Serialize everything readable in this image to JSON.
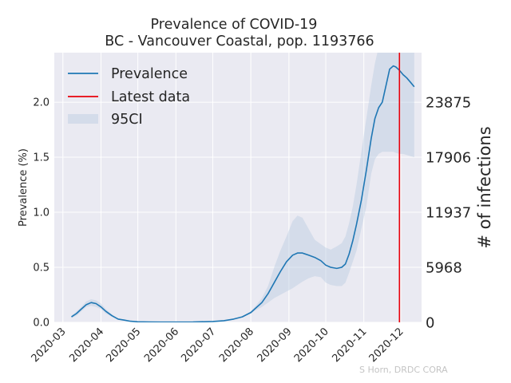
{
  "chart_data": {
    "type": "line",
    "title": "Prevalence of COVID-19",
    "subtitle": "BC - Vancouver Coastal, pop. 1193766",
    "ylabel": "Prevalence (%)",
    "ylabel_right": "# of infections",
    "ylim": [
      0.0,
      2.45
    ],
    "y_ticks": [
      "0.0",
      "0.5",
      "1.0",
      "1.5",
      "2.0"
    ],
    "y_tick_values": [
      0.0,
      0.5,
      1.0,
      1.5,
      2.0
    ],
    "right_ticks": [
      "0",
      "5968",
      "11937",
      "17906",
      "23875"
    ],
    "x_ticks": [
      "2020-03",
      "2020-04",
      "2020-05",
      "2020-06",
      "2020-07",
      "2020-08",
      "2020-09",
      "2020-10",
      "2020-11",
      "2020-12"
    ],
    "x_tick_dates": [
      "2020-03-01",
      "2020-04-01",
      "2020-05-01",
      "2020-06-01",
      "2020-07-01",
      "2020-08-01",
      "2020-09-01",
      "2020-10-01",
      "2020-11-01",
      "2020-12-01"
    ],
    "xlim": [
      "2020-02-23",
      "2020-12-18"
    ],
    "grid": true,
    "legend_position": "top-left",
    "latest_data_date": "2020-11-30",
    "series": [
      {
        "name": "Prevalence",
        "color": "#1f77b4",
        "x": [
          "2020-03-08",
          "2020-03-12",
          "2020-03-16",
          "2020-03-20",
          "2020-03-24",
          "2020-03-28",
          "2020-04-01",
          "2020-04-05",
          "2020-04-10",
          "2020-04-15",
          "2020-04-20",
          "2020-04-25",
          "2020-05-01",
          "2020-05-10",
          "2020-05-20",
          "2020-06-01",
          "2020-06-15",
          "2020-07-01",
          "2020-07-10",
          "2020-07-18",
          "2020-07-25",
          "2020-08-01",
          "2020-08-05",
          "2020-08-10",
          "2020-08-15",
          "2020-08-20",
          "2020-08-25",
          "2020-08-30",
          "2020-09-04",
          "2020-09-08",
          "2020-09-12",
          "2020-09-17",
          "2020-09-22",
          "2020-09-27",
          "2020-10-01",
          "2020-10-05",
          "2020-10-10",
          "2020-10-14",
          "2020-10-17",
          "2020-10-20",
          "2020-10-23",
          "2020-10-26",
          "2020-10-30",
          "2020-11-03",
          "2020-11-07",
          "2020-11-10",
          "2020-11-13",
          "2020-11-16",
          "2020-11-19",
          "2020-11-22",
          "2020-11-25",
          "2020-11-27",
          "2020-11-30",
          "2020-12-03",
          "2020-12-06",
          "2020-12-09",
          "2020-12-12"
        ],
        "values": [
          0.05,
          0.08,
          0.12,
          0.16,
          0.18,
          0.17,
          0.14,
          0.1,
          0.06,
          0.03,
          0.02,
          0.01,
          0.005,
          0.003,
          0.002,
          0.002,
          0.003,
          0.008,
          0.015,
          0.03,
          0.05,
          0.09,
          0.13,
          0.18,
          0.26,
          0.36,
          0.46,
          0.55,
          0.61,
          0.63,
          0.63,
          0.61,
          0.59,
          0.56,
          0.52,
          0.5,
          0.49,
          0.5,
          0.53,
          0.62,
          0.74,
          0.89,
          1.11,
          1.38,
          1.67,
          1.85,
          1.95,
          2.0,
          2.15,
          2.3,
          2.33,
          2.32,
          2.29,
          2.25,
          2.22,
          2.18,
          2.14
        ]
      },
      {
        "name": "95CI",
        "color": "#b0c4de",
        "x": [
          "2020-03-08",
          "2020-03-12",
          "2020-03-16",
          "2020-03-20",
          "2020-03-24",
          "2020-03-28",
          "2020-04-01",
          "2020-04-05",
          "2020-04-10",
          "2020-04-15",
          "2020-04-20",
          "2020-04-25",
          "2020-05-01",
          "2020-05-10",
          "2020-05-20",
          "2020-06-01",
          "2020-06-15",
          "2020-07-01",
          "2020-07-10",
          "2020-07-18",
          "2020-07-25",
          "2020-08-01",
          "2020-08-05",
          "2020-08-10",
          "2020-08-15",
          "2020-08-20",
          "2020-08-25",
          "2020-08-30",
          "2020-09-04",
          "2020-09-08",
          "2020-09-12",
          "2020-09-17",
          "2020-09-22",
          "2020-09-27",
          "2020-10-01",
          "2020-10-05",
          "2020-10-10",
          "2020-10-14",
          "2020-10-17",
          "2020-10-20",
          "2020-10-23",
          "2020-10-26",
          "2020-10-30",
          "2020-11-03",
          "2020-11-07",
          "2020-11-10",
          "2020-11-13",
          "2020-11-16",
          "2020-11-19",
          "2020-11-22",
          "2020-11-25",
          "2020-11-27",
          "2020-11-30",
          "2020-12-03",
          "2020-12-06",
          "2020-12-09",
          "2020-12-12"
        ],
        "lower": [
          0.04,
          0.06,
          0.1,
          0.14,
          0.15,
          0.14,
          0.12,
          0.08,
          0.05,
          0.025,
          0.015,
          0.008,
          0.004,
          0.002,
          0.001,
          0.001,
          0.002,
          0.006,
          0.012,
          0.025,
          0.045,
          0.08,
          0.11,
          0.14,
          0.18,
          0.22,
          0.25,
          0.28,
          0.31,
          0.34,
          0.37,
          0.4,
          0.42,
          0.41,
          0.36,
          0.34,
          0.33,
          0.33,
          0.36,
          0.45,
          0.55,
          0.65,
          0.85,
          1.05,
          1.35,
          1.48,
          1.53,
          1.55,
          1.55,
          1.55,
          1.55,
          1.54,
          1.53,
          1.53,
          1.52,
          1.51,
          1.5
        ],
        "upper": [
          0.06,
          0.1,
          0.14,
          0.19,
          0.21,
          0.2,
          0.17,
          0.12,
          0.07,
          0.035,
          0.025,
          0.012,
          0.006,
          0.004,
          0.003,
          0.003,
          0.004,
          0.01,
          0.018,
          0.035,
          0.055,
          0.1,
          0.15,
          0.22,
          0.33,
          0.5,
          0.65,
          0.78,
          0.92,
          0.97,
          0.95,
          0.85,
          0.75,
          0.71,
          0.68,
          0.66,
          0.69,
          0.72,
          0.78,
          0.9,
          1.05,
          1.25,
          1.55,
          1.85,
          2.15,
          2.35,
          2.5,
          2.6,
          2.75,
          2.9,
          3.0,
          3.0,
          3.0,
          3.0,
          3.0,
          3.0,
          3.0
        ]
      }
    ],
    "legend": [
      {
        "label": "Prevalence",
        "kind": "line",
        "color": "#1f77b4"
      },
      {
        "label": "Latest data",
        "kind": "line",
        "color": "#e8000b"
      },
      {
        "label": "95CI",
        "kind": "patch",
        "color": "#b0c4de"
      }
    ]
  },
  "credit": "S Horn, DRDC CORA"
}
